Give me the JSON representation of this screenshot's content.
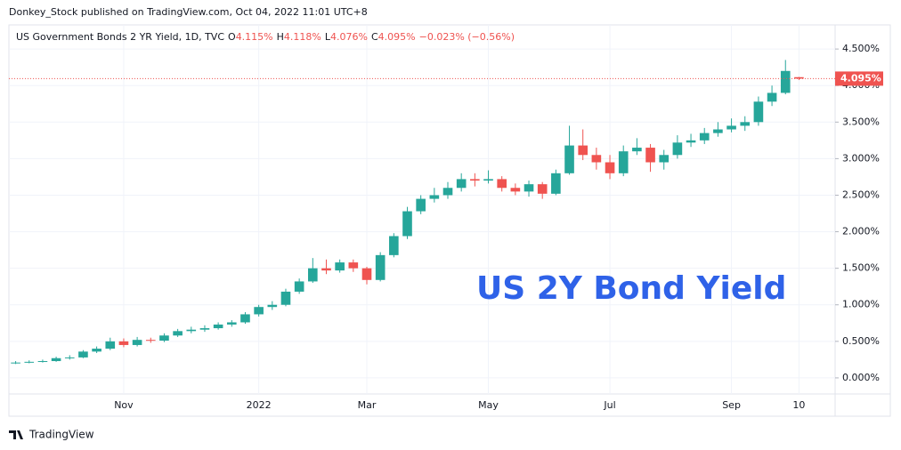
{
  "chart_data": {
    "type": "candlestick",
    "publisher": "Donkey_Stock published on TradingView.com, Oct 04, 2022 11:01 UTC+8",
    "legend": {
      "title": "US Government Bonds 2 YR Yield, 1D, TVC",
      "open_label": "O",
      "open": "4.115%",
      "high_label": "H",
      "high": "4.118%",
      "low_label": "L",
      "low": "4.076%",
      "close_label": "C",
      "close": "4.095%",
      "change": "−0.023% (−0.56%)"
    },
    "annotation": "US 2Y Bond Yield",
    "watermark": "TradingView",
    "up_color": "#26a69a",
    "down_color": "#ef5350",
    "categories": [
      null,
      null,
      null,
      null,
      null,
      null,
      null,
      null,
      "Nov",
      null,
      null,
      null,
      null,
      null,
      null,
      null,
      null,
      null,
      "2022",
      null,
      null,
      null,
      null,
      null,
      null,
      null,
      "Mar",
      null,
      null,
      null,
      null,
      null,
      null,
      null,
      null,
      "May",
      null,
      null,
      null,
      null,
      null,
      null,
      null,
      null,
      "Jul",
      null,
      null,
      null,
      null,
      null,
      null,
      null,
      null,
      "Sep",
      null,
      null,
      null,
      null,
      "10"
    ],
    "open": [
      0.2,
      0.21,
      0.22,
      0.23,
      0.27,
      0.28,
      0.36,
      0.4,
      0.5,
      0.45,
      0.52,
      0.51,
      0.58,
      0.64,
      0.66,
      0.68,
      0.73,
      0.76,
      0.87,
      0.97,
      1.0,
      1.18,
      1.32,
      1.5,
      1.47,
      1.58,
      1.5,
      1.34,
      1.68,
      1.94,
      2.28,
      2.45,
      2.5,
      2.6,
      2.72,
      2.7,
      2.72,
      2.6,
      2.55,
      2.65,
      2.52,
      2.8,
      3.18,
      3.05,
      2.95,
      2.8,
      3.1,
      3.15,
      2.95,
      3.05,
      3.22,
      3.25,
      3.35,
      3.4,
      3.45,
      3.5,
      3.78,
      3.9,
      4.115
    ],
    "high": [
      0.23,
      0.24,
      0.25,
      0.29,
      0.31,
      0.38,
      0.43,
      0.55,
      0.54,
      0.56,
      0.55,
      0.61,
      0.67,
      0.7,
      0.72,
      0.76,
      0.79,
      0.9,
      1.0,
      1.05,
      1.22,
      1.36,
      1.64,
      1.62,
      1.62,
      1.62,
      1.52,
      1.72,
      1.98,
      2.34,
      2.5,
      2.6,
      2.68,
      2.8,
      2.8,
      2.84,
      2.76,
      2.66,
      2.7,
      2.68,
      2.85,
      3.45,
      3.4,
      3.15,
      3.05,
      3.18,
      3.28,
      3.2,
      3.12,
      3.32,
      3.34,
      3.42,
      3.5,
      3.55,
      3.58,
      3.85,
      4.0,
      4.35,
      4.118
    ],
    "low": [
      0.19,
      0.2,
      0.21,
      0.22,
      0.25,
      0.27,
      0.34,
      0.38,
      0.42,
      0.43,
      0.48,
      0.49,
      0.56,
      0.61,
      0.63,
      0.66,
      0.7,
      0.74,
      0.84,
      0.93,
      0.98,
      1.15,
      1.3,
      1.42,
      1.44,
      1.45,
      1.28,
      1.32,
      1.65,
      1.9,
      2.24,
      2.4,
      2.45,
      2.55,
      2.62,
      2.66,
      2.55,
      2.5,
      2.48,
      2.45,
      2.5,
      2.78,
      2.98,
      2.85,
      2.72,
      2.76,
      3.05,
      2.82,
      2.85,
      3.0,
      3.16,
      3.2,
      3.3,
      3.36,
      3.38,
      3.45,
      3.72,
      3.88,
      4.076
    ],
    "close": [
      0.21,
      0.22,
      0.23,
      0.27,
      0.28,
      0.36,
      0.4,
      0.5,
      0.45,
      0.52,
      0.51,
      0.58,
      0.64,
      0.66,
      0.68,
      0.73,
      0.76,
      0.87,
      0.97,
      1.0,
      1.18,
      1.32,
      1.5,
      1.47,
      1.58,
      1.5,
      1.34,
      1.68,
      1.94,
      2.28,
      2.45,
      2.5,
      2.6,
      2.72,
      2.7,
      2.72,
      2.6,
      2.55,
      2.65,
      2.52,
      2.8,
      3.18,
      3.05,
      2.95,
      2.8,
      3.1,
      3.15,
      2.95,
      3.05,
      3.22,
      3.25,
      3.35,
      3.4,
      3.45,
      3.5,
      3.78,
      3.9,
      4.2,
      4.095
    ],
    "last_price": 4.095,
    "last_price_label": "4.095%",
    "ylim": [
      -0.22,
      4.83
    ],
    "yticks": [
      {
        "value": 0,
        "label": "0.000%"
      },
      {
        "value": 0.5,
        "label": "0.500%"
      },
      {
        "value": 1,
        "label": "1.000%"
      },
      {
        "value": 1.5,
        "label": "1.500%"
      },
      {
        "value": 2,
        "label": "2.000%"
      },
      {
        "value": 2.5,
        "label": "2.500%"
      },
      {
        "value": 3,
        "label": "3.000%"
      },
      {
        "value": 3.5,
        "label": "3.500%"
      },
      {
        "value": 4,
        "label": "4.000%"
      },
      {
        "value": 4.5,
        "label": "4.500%"
      }
    ],
    "grid": true
  }
}
